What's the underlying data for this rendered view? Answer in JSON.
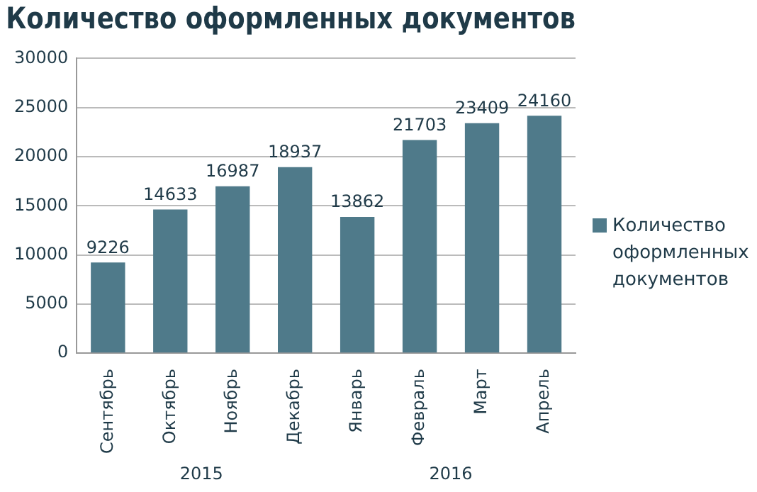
{
  "chart_data": {
    "type": "bar",
    "title": "Количество оформленных документов",
    "categories": [
      "Сентябрь",
      "Октябрь",
      "Ноябрь",
      "Декабрь",
      "Январь",
      "Февраль",
      "Март",
      "Апрель"
    ],
    "series": [
      {
        "name": "Количество оформленных документов",
        "color": "#4f7a8a",
        "values": [
          9226,
          14633,
          16987,
          18937,
          13862,
          21703,
          23409,
          24160
        ]
      }
    ],
    "ylim": [
      0,
      30000
    ],
    "yticks": [
      0,
      5000,
      10000,
      15000,
      20000,
      25000,
      30000
    ],
    "grid": "y",
    "legend": "right",
    "data_labels": true,
    "annotations": [
      "2015",
      "2016"
    ]
  }
}
